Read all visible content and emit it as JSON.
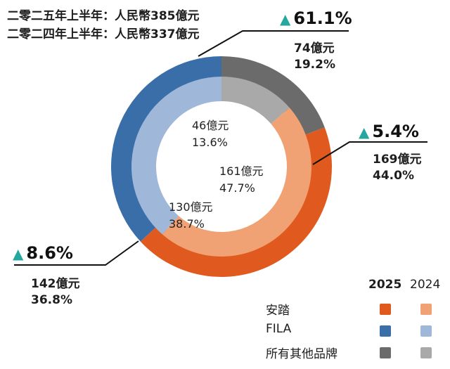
{
  "header": {
    "line1": "二零二五年上半年：人民幣385億元",
    "line2": "二零二四年上半年：人民幣337億元"
  },
  "chart_data": {
    "type": "donut",
    "outer_ring_year": "2025",
    "inner_ring_year": "2024",
    "categories": [
      "安踏",
      "FILA",
      "所有其他品牌"
    ],
    "series": [
      {
        "name": "2025",
        "values": [
          169,
          142,
          74
        ],
        "value_labels": [
          "169億元",
          "142億元",
          "74億元"
        ],
        "percent_labels": [
          "44.0%",
          "36.8%",
          "19.2%"
        ]
      },
      {
        "name": "2024",
        "values": [
          161,
          130,
          46
        ],
        "value_labels": [
          "161億元",
          "130億元",
          "46億元"
        ],
        "percent_labels": [
          "47.7%",
          "38.7%",
          "13.6%"
        ]
      }
    ],
    "growth": [
      "5.4%",
      "8.6%",
      "61.1%"
    ],
    "growth_symbol": "▲",
    "colors": {
      "2025": [
        "#e05a1f",
        "#3a6ea8",
        "#6b6b6b"
      ],
      "2024": [
        "#f0a274",
        "#9fb7d8",
        "#a9a9a9"
      ],
      "growth_arrow": "#23a79e"
    },
    "legend": {
      "years": [
        "2025",
        "2024"
      ],
      "items": [
        "安踏",
        "FILA",
        "所有其他品牌"
      ]
    }
  }
}
